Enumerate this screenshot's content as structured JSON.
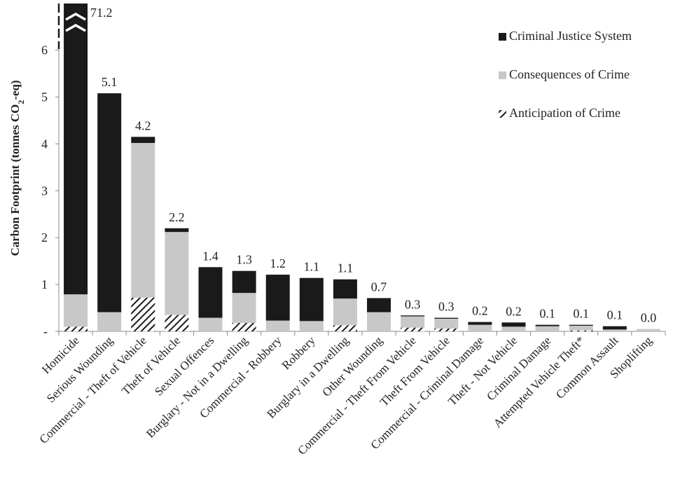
{
  "chart_data": {
    "type": "bar",
    "stacked": true,
    "ylabel_parts": [
      "Carbon Footprint (tonnes CO",
      "2",
      "-eq)"
    ],
    "ylim": [
      0,
      7
    ],
    "yticks": [
      "-",
      "1",
      "2",
      "3",
      "4",
      "5",
      "6"
    ],
    "axis_break": {
      "category": "Homicide",
      "note": "bar truncated at top of axis",
      "label": "71.2"
    },
    "categories": [
      "Homicide",
      "Serious Wounding",
      "Commercial - Theft of Vehicle",
      "Theft of Vehicle",
      "Sexual Offences",
      "Burglary - Not in a Dwelling",
      "Commercial - Robbery",
      "Robbery",
      "Burglary in a Dwelling",
      "Other Wounding",
      "Commercial - Theft From Vehicle",
      "Theft From Vehicle",
      "Commercial - Criminal Damage",
      "Theft - Not Vehicle",
      "Criminal Damage",
      "Attempted Vehicle Theft*",
      "Common Assault",
      "Shoplifting"
    ],
    "totals_labels": [
      "71.2",
      "5.1",
      "4.2",
      "2.2",
      "1.4",
      "1.3",
      "1.2",
      "1.1",
      "1.1",
      "0.7",
      "0.3",
      "0.3",
      "0.2",
      "0.2",
      "0.1",
      "0.1",
      "0.1",
      "0.0"
    ],
    "series": [
      {
        "name": "Anticipation of Crime",
        "color": "#ffffff",
        "pattern": "diagonal-hatch",
        "values": [
          0.1,
          0.0,
          0.72,
          0.35,
          0.0,
          0.18,
          0.0,
          0.0,
          0.13,
          0.0,
          0.08,
          0.06,
          0.0,
          0.0,
          0.0,
          0.02,
          0.0,
          0.0
        ]
      },
      {
        "name": "Consequences of Crime",
        "color": "#c8c8c8",
        "pattern": "solid",
        "values": [
          0.69,
          0.41,
          3.3,
          1.77,
          0.29,
          0.64,
          0.23,
          0.22,
          0.57,
          0.41,
          0.24,
          0.21,
          0.14,
          0.1,
          0.11,
          0.1,
          0.04,
          0.05
        ]
      },
      {
        "name": "Criminal Justice System",
        "color": "#1a1a1a",
        "pattern": "solid",
        "values": [
          70.41,
          4.67,
          0.13,
          0.08,
          1.08,
          0.47,
          0.98,
          0.92,
          0.41,
          0.3,
          0.02,
          0.02,
          0.06,
          0.09,
          0.03,
          0.02,
          0.07,
          0.0
        ]
      }
    ],
    "legend": {
      "placement": "top-right",
      "entries": [
        "Criminal Justice System",
        "Consequences of Crime",
        "Anticipation of Crime"
      ]
    },
    "grid": false
  }
}
